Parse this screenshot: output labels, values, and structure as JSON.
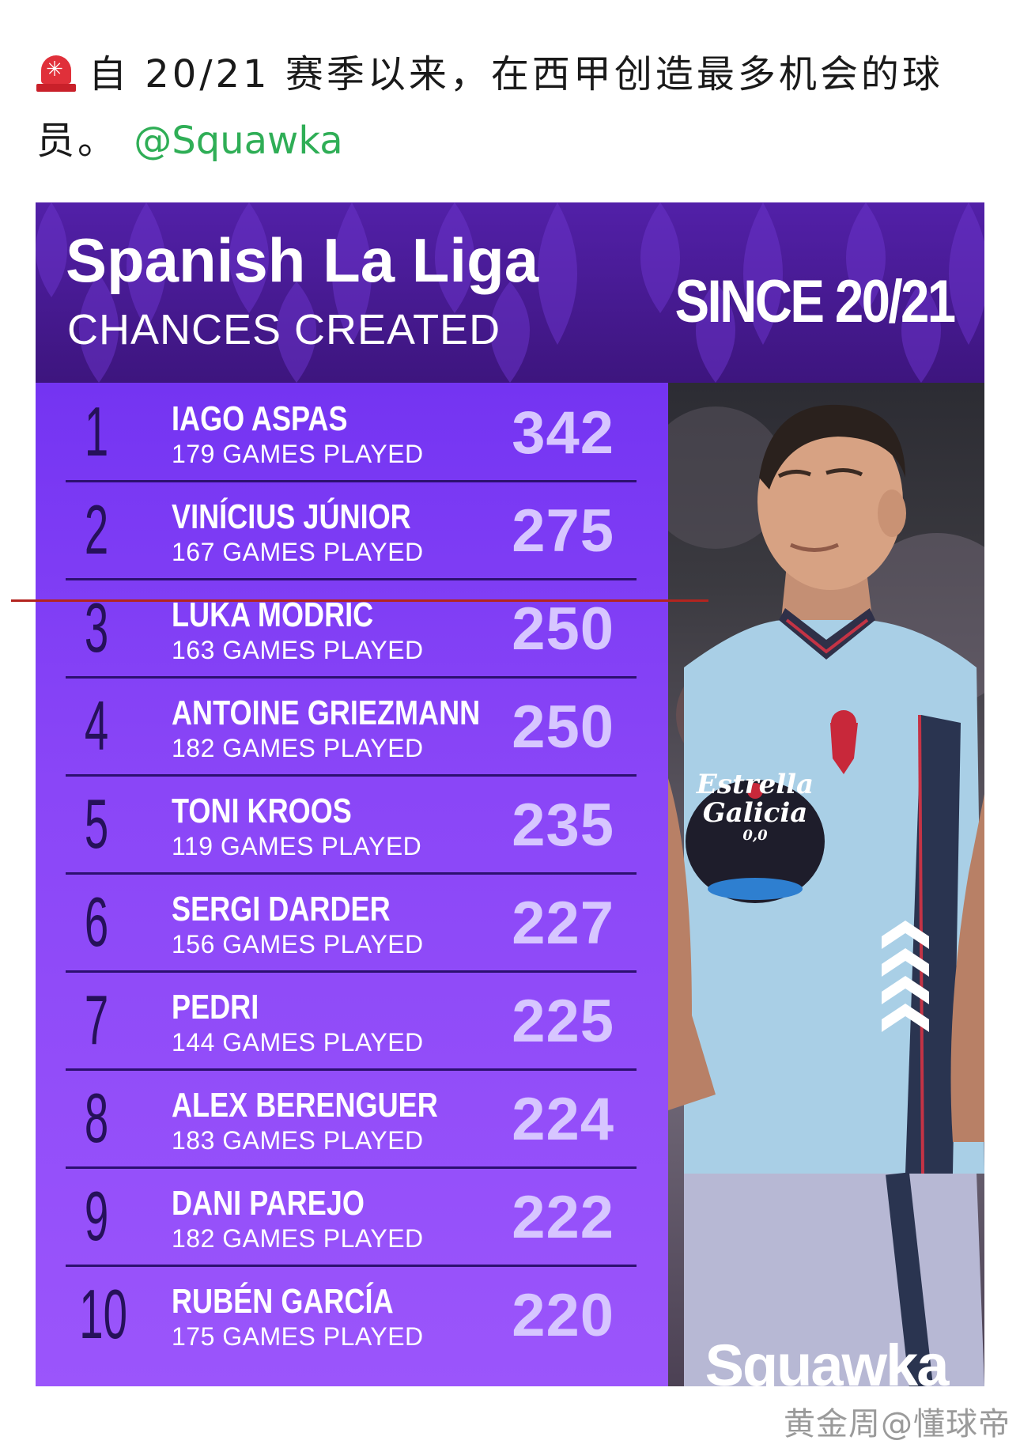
{
  "post": {
    "text": "自 20/21 赛季以来，在西甲创造最多机会的球员。",
    "mention": "@Squawka",
    "icon": "siren-icon"
  },
  "graphic": {
    "title": "Spanish La Liga",
    "subtitle": "CHANCES CREATED",
    "since": "SINCE 20/21",
    "brand": "Squawka",
    "colors": {
      "header_bg": "#4a1c9a",
      "table_bg": "#8140f5",
      "value_text": "#d7c6ff",
      "rank_text": "#26115a"
    },
    "rows": [
      {
        "rank": "1",
        "name": "IAGO ASPAS",
        "games": "179 GAMES PLAYED",
        "value": "342"
      },
      {
        "rank": "2",
        "name": "VINÍCIUS JÚNIOR",
        "games": "167 GAMES PLAYED",
        "value": "275"
      },
      {
        "rank": "3",
        "name": "LUKA MODRIC",
        "games": "163 GAMES PLAYED",
        "value": "250"
      },
      {
        "rank": "4",
        "name": "ANTOINE GRIEZMANN",
        "games": "182 GAMES PLAYED",
        "value": "250"
      },
      {
        "rank": "5",
        "name": "TONI KROOS",
        "games": "119 GAMES PLAYED",
        "value": "235"
      },
      {
        "rank": "6",
        "name": "SERGI DARDER",
        "games": "156 GAMES PLAYED",
        "value": "227"
      },
      {
        "rank": "7",
        "name": "PEDRI",
        "games": "144 GAMES PLAYED",
        "value": "225"
      },
      {
        "rank": "8",
        "name": "ALEX BERENGUER",
        "games": "183 GAMES PLAYED",
        "value": "224"
      },
      {
        "rank": "9",
        "name": "DANI PAREJO",
        "games": "182 GAMES PLAYED",
        "value": "222"
      },
      {
        "rank": "10",
        "name": "RUBÉN GARCÍA",
        "games": "175 GAMES PLAYED",
        "value": "220"
      }
    ],
    "sponsor_lines": [
      "Estrella",
      "Galicia",
      "0,0"
    ]
  },
  "watermark": "黄金周@懂球帝"
}
